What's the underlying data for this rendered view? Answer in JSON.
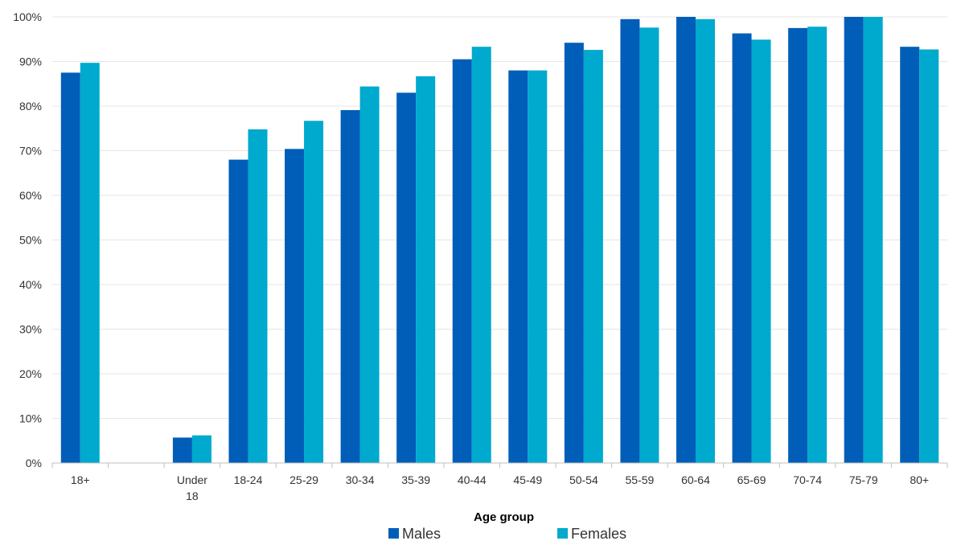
{
  "chart_data": {
    "type": "bar",
    "categories": [
      "18+",
      "",
      "Under 18",
      "18-24",
      "25-29",
      "30-34",
      "35-39",
      "40-44",
      "45-49",
      "50-54",
      "55-59",
      "60-64",
      "65-69",
      "70-74",
      "75-79",
      "80+"
    ],
    "series": [
      {
        "name": "Males",
        "color": "#005EB8",
        "values": [
          87.5,
          null,
          5.7,
          68.0,
          70.4,
          79.1,
          83.0,
          90.5,
          88.0,
          94.2,
          99.5,
          100.0,
          96.3,
          97.5,
          100.0,
          93.3
        ]
      },
      {
        "name": "Females",
        "color": "#00A9CE",
        "values": [
          89.7,
          null,
          6.2,
          74.8,
          76.7,
          84.4,
          86.7,
          93.3,
          88.0,
          92.6,
          97.6,
          99.5,
          94.9,
          97.8,
          100.0,
          92.7
        ]
      }
    ],
    "xlabel": "Age group",
    "ylabel": "",
    "ylim": [
      0,
      100
    ],
    "yticks": [
      "0%",
      "10%",
      "20%",
      "30%",
      "40%",
      "50%",
      "60%",
      "70%",
      "80%",
      "90%",
      "100%"
    ],
    "grid": true,
    "legend_position": "bottom-center"
  }
}
